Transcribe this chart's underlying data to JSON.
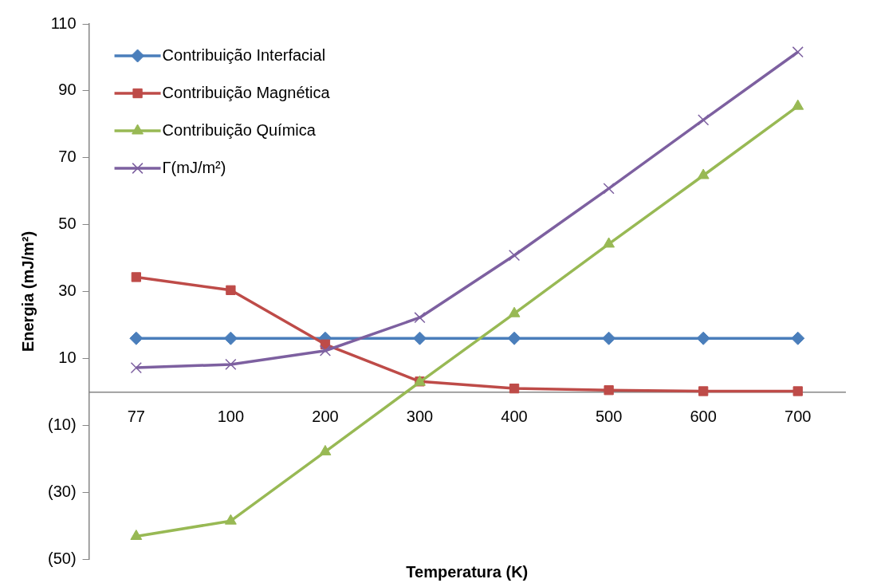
{
  "chart_data": {
    "type": "line",
    "xlabel": "Temperatura (K)",
    "ylabel": "Energia (mJ/m²)",
    "categories": [
      "77",
      "100",
      "200",
      "300",
      "400",
      "500",
      "600",
      "700"
    ],
    "ylim": [
      -50,
      110
    ],
    "yticks": [
      {
        "value": -50,
        "label": "(50)"
      },
      {
        "value": -30,
        "label": "(30)"
      },
      {
        "value": -10,
        "label": "(10)"
      },
      10,
      30,
      50,
      70,
      90,
      110
    ],
    "grid": false,
    "legend": "top left",
    "line_style": "solid",
    "series": [
      {
        "name": "Contribuição Interfacial",
        "color": "#4a7ebb",
        "marker": "diamond",
        "values": [
          16,
          16,
          16,
          16,
          16,
          16,
          16,
          16
        ]
      },
      {
        "name": "Contribuição Magnética",
        "color": "#be4b48",
        "marker": "square",
        "values": [
          34.3,
          30.4,
          14.2,
          3.1,
          1,
          0.5,
          0.2,
          0.2
        ]
      },
      {
        "name": "Contribuição Química",
        "color": "#98b954",
        "marker": "triangle",
        "values": [
          -43.2,
          -38.6,
          -17.9,
          2.9,
          23.4,
          44.2,
          64.7,
          85.4
        ]
      },
      {
        "name": "Γ(mJ/m²)",
        "color": "#7d60a0",
        "marker": "cross",
        "values": [
          7.2,
          8.2,
          12.3,
          22.2,
          40.8,
          60.8,
          81.3,
          101.6
        ]
      }
    ]
  }
}
